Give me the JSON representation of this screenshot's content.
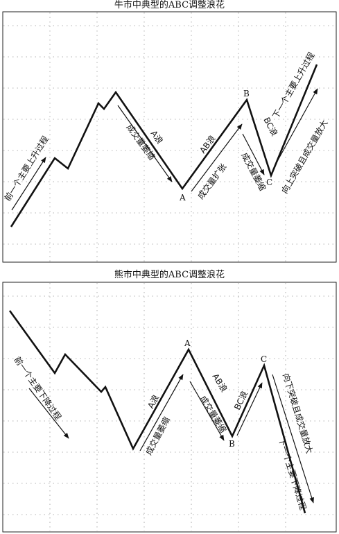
{
  "top": {
    "title": "牛市中典型的ABC调整浪花",
    "points": {
      "a": "A",
      "b": "B",
      "c": "C"
    },
    "labels": {
      "prev": "前一个主要上升过程",
      "a_wave": "A浪",
      "a_volume": "成交量萎缩",
      "ab_wave": "AB浪",
      "ab_volume": "成交量扩张",
      "bc_volume": "成交量萎缩",
      "bc_wave": "BC浪",
      "next": "下一个主要上升过程",
      "breakout": "向上突破且成交量放大"
    }
  },
  "bottom": {
    "title": "熊市中典型的ABC调整浪花",
    "points": {
      "a": "A",
      "b": "B",
      "c": "C"
    },
    "labels": {
      "prev": "前一个主要下降过程",
      "a_wave": "A浪",
      "a_volume": "成交量萎缩",
      "ab_wave": "AB浪",
      "ab_volume": "成交量萎缩",
      "bc_wave": "BC浪",
      "breakout": "向下突破且成交量放大",
      "next": "下一个主要下降过程"
    }
  }
}
